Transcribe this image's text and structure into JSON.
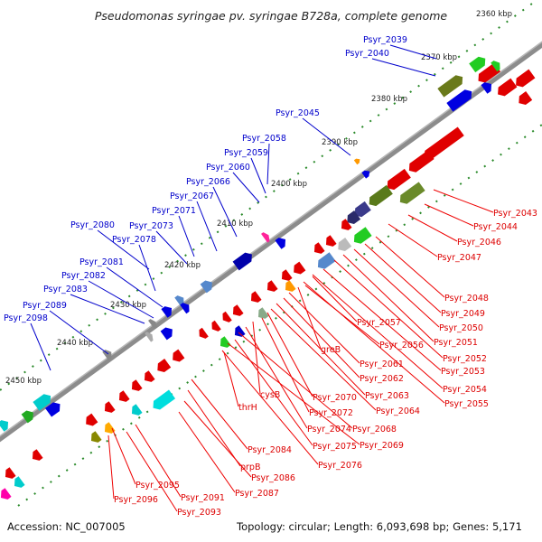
{
  "title": "Pseudomonas syringae pv. syringae B728a, complete genome",
  "footer": {
    "accession": "Accession: NC_007005",
    "summary": "Topology: circular; Length: 6,093,698 bp; Genes: 5,171"
  },
  "ticks": [
    "2360 kbp",
    "2370 kbp",
    "2380 kbp",
    "2390 kbp",
    "2400 kbp",
    "2410 kbp",
    "2420 kbp",
    "2430 kbp",
    "2440 kbp",
    "2450 kbp"
  ],
  "labels_blue": [
    "Psyr_2039",
    "Psyr_2040",
    "Psyr_2045",
    "Psyr_2058",
    "Psyr_2059",
    "Psyr_2060",
    "Psyr_2066",
    "Psyr_2067",
    "Psyr_2071",
    "Psyr_2073",
    "Psyr_2080",
    "Psyr_2078",
    "Psyr_2081",
    "Psyr_2082",
    "Psyr_2083",
    "Psyr_2089",
    "Psyr_2098"
  ],
  "labels_red": [
    "Psyr_2043",
    "Psyr_2044",
    "Psyr_2046",
    "Psyr_2047",
    "Psyr_2048",
    "Psyr_2049",
    "Psyr_2050",
    "Psyr_2051",
    "Psyr_2052",
    "Psyr_2053",
    "Psyr_2054",
    "Psyr_2055",
    "Psyr_2057",
    "Psyr_2056",
    "greB",
    "Psyr_2061",
    "Psyr_2062",
    "Psyr_2063",
    "Psyr_2064",
    "Psyr_2070",
    "Psyr_2072",
    "cysB",
    "Psyr_2074",
    "Psyr_2068",
    "Psyr_2075",
    "Psyr_2069",
    "Psyr_2076",
    "thrH",
    "Psyr_2084",
    "prpB",
    "Psyr_2086",
    "Psyr_2087",
    "Psyr_2095",
    "Psyr_2096",
    "Psyr_2091",
    "Psyr_2093"
  ],
  "colors": {
    "forward": "#0000ee",
    "reverse": "#ee0000",
    "backbone": "#888888",
    "tick": "#2a8a2a"
  }
}
